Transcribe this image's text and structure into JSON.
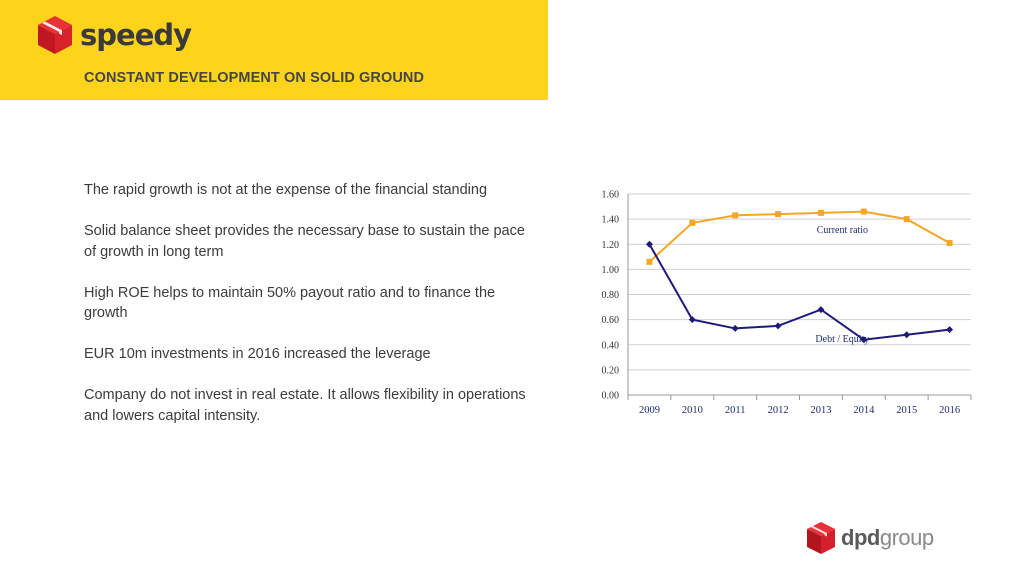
{
  "header": {
    "brand": "speedy",
    "title": "CONSTANT DEVELOPMENT ON SOLID GROUND",
    "band_color": "#fdd31b"
  },
  "content": {
    "bullets": [
      "The rapid growth is not at the expense of the financial standing",
      "Solid balance sheet provides the necessary base to sustain the pace of growth in long term",
      "High ROE helps to maintain 50% payout ratio and to finance the growth",
      "EUR 10m investments in 2016 increased the leverage",
      "Company do not invest in real estate. It allows flexibility in operations and lowers capital intensity."
    ]
  },
  "footer": {
    "brand_part1": "dpd",
    "brand_part2": "group",
    "logo_icon": "dpd-cube-icon"
  },
  "chart_data": {
    "type": "line",
    "categories": [
      "2009",
      "2010",
      "2011",
      "2012",
      "2013",
      "2014",
      "2015",
      "2016"
    ],
    "ylim": [
      0,
      1.6
    ],
    "yticks": [
      "0.00",
      "0.20",
      "0.40",
      "0.60",
      "0.80",
      "1.00",
      "1.20",
      "1.40",
      "1.60"
    ],
    "grid": true,
    "series": [
      {
        "name": "Current ratio",
        "color": "#f5a623",
        "marker": "square",
        "values": [
          1.06,
          1.37,
          1.43,
          1.44,
          1.45,
          1.46,
          1.4,
          1.21
        ]
      },
      {
        "name": "Debt / Equity",
        "color": "#1f1a7a",
        "marker": "diamond",
        "values": [
          1.2,
          0.6,
          0.53,
          0.55,
          0.68,
          0.44,
          0.48,
          0.52
        ]
      }
    ]
  }
}
